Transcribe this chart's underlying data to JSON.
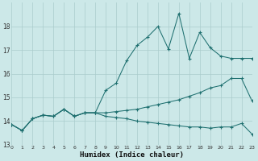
{
  "background_color": "#cce8e8",
  "grid_color": "#aacccc",
  "line_color": "#1f7070",
  "xlabel": "Humidex (Indice chaleur)",
  "xlim": [
    0,
    23
  ],
  "ylim": [
    13.0,
    19.0
  ],
  "x_ticks": [
    0,
    1,
    2,
    3,
    4,
    5,
    6,
    7,
    8,
    9,
    10,
    11,
    12,
    13,
    14,
    15,
    16,
    17,
    18,
    19,
    20,
    21,
    22,
    23
  ],
  "y_ticks": [
    13,
    14,
    15,
    16,
    17,
    18
  ],
  "line1_y": [
    13.85,
    13.6,
    14.1,
    14.25,
    14.2,
    14.5,
    14.2,
    14.35,
    14.35,
    15.3,
    15.6,
    16.55,
    17.2,
    17.55,
    18.0,
    17.05,
    18.55,
    16.65,
    17.75,
    17.1,
    16.75,
    16.65,
    16.65,
    16.65
  ],
  "line2_y": [
    13.85,
    13.6,
    14.1,
    14.25,
    14.2,
    14.5,
    14.2,
    14.35,
    14.35,
    14.35,
    14.4,
    14.45,
    14.5,
    14.6,
    14.7,
    14.8,
    14.9,
    15.05,
    15.2,
    15.4,
    15.5,
    15.8,
    15.8,
    14.85
  ],
  "line3_y": [
    13.85,
    13.6,
    14.1,
    14.25,
    14.2,
    14.5,
    14.2,
    14.35,
    14.35,
    14.2,
    14.15,
    14.1,
    14.0,
    13.95,
    13.9,
    13.85,
    13.8,
    13.75,
    13.75,
    13.7,
    13.75,
    13.75,
    13.9,
    13.45
  ]
}
